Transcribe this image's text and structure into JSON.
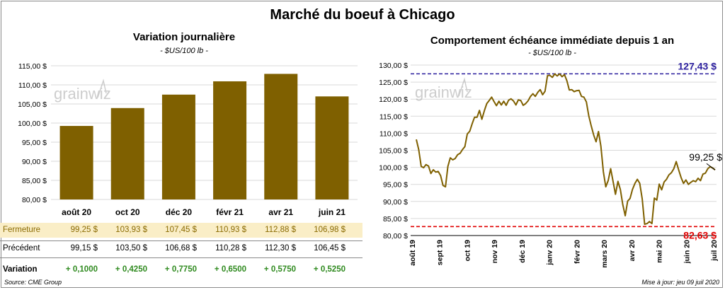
{
  "main_title": "Marché du boeuf à Chicago",
  "footer": {
    "source": "Source: CME Group",
    "updated": "Mise à jour: jeu 09 juil 2020"
  },
  "watermark": "grainwiz",
  "left": {
    "title": "Variation  journalière",
    "unit": "- $US/100 lb -"
  },
  "right": {
    "title": "Comportement  échéance  immédiate  depuis 1 an",
    "unit": "- $US/100 lb -"
  },
  "table": {
    "rows": [
      {
        "label": "Fermeture",
        "values": [
          "99,25  $",
          "103,93  $",
          "107,45  $",
          "110,93  $",
          "112,88  $",
          "106,98  $"
        ]
      },
      {
        "label": "Précédent",
        "values": [
          "99,15  $",
          "103,50  $",
          "106,68  $",
          "110,28  $",
          "112,30  $",
          "106,45  $"
        ]
      },
      {
        "label": "Variation",
        "values": [
          "+ 0,1000",
          "+ 0,4250",
          "+ 0,7750",
          "+ 0,6500",
          "+ 0,5750",
          "+ 0,5250"
        ]
      }
    ]
  },
  "chart_data": [
    {
      "type": "bar",
      "title": "Variation  journalière",
      "categories": [
        "août 20",
        "oct 20",
        "déc 20",
        "févr 21",
        "avr 21",
        "juin 21"
      ],
      "values": [
        99.25,
        103.93,
        107.45,
        110.93,
        112.88,
        106.98
      ],
      "ylim": [
        80,
        115
      ],
      "yticks": [
        80,
        85,
        90,
        95,
        100,
        105,
        110,
        115
      ],
      "ytick_labels": [
        "80,00 $",
        "85,00 $",
        "90,00 $",
        "95,00 $",
        "100,00 $",
        "105,00 $",
        "110,00 $",
        "115,00 $"
      ],
      "grid": true,
      "colors": {
        "bar": "#7f6000"
      }
    },
    {
      "type": "line",
      "title": "Comportement  échéance  immédiate  depuis 1 an",
      "x_labels": [
        "août 19",
        "sept 19",
        "oct 19",
        "nov 19",
        "déc 19",
        "janv 20",
        "févr 20",
        "mars 20",
        "avr 20",
        "mai 20",
        "juin 20",
        "juil 20"
      ],
      "ylim": [
        80,
        130
      ],
      "yticks": [
        80,
        85,
        90,
        95,
        100,
        105,
        110,
        115,
        120,
        125,
        130
      ],
      "ytick_labels": [
        "80,00 $",
        "85,00 $",
        "90,00 $",
        "95,00 $",
        "100,00 $",
        "105,00 $",
        "110,00 $",
        "115,00 $",
        "120,00 $",
        "125,00 $",
        "130,00 $"
      ],
      "grid": true,
      "series": [
        {
          "values": [
            108.2,
            105.2,
            100.3,
            99.9,
            100.8,
            100.4,
            98.2,
            99.3,
            98.6,
            98.8,
            97.6,
            94.7,
            94.3,
            100.3,
            102.8,
            102.2,
            102.6,
            103.7,
            104.1,
            105.2,
            106.1,
            109.8,
            110.6,
            112.8,
            114.7,
            114.7,
            116.7,
            114.1,
            116.6,
            118.7,
            119.6,
            120.6,
            119.3,
            118.1,
            119.4,
            118.3,
            119.4,
            118.2,
            119.7,
            120.1,
            119.5,
            118.3,
            119.8,
            119.6,
            118.2,
            118.7,
            119.5,
            120.8,
            121.6,
            120.8,
            122.0,
            122.8,
            121.3,
            122.3,
            126.9,
            127.0,
            126.4,
            127.4,
            126.8,
            127.4,
            126.6,
            127.2,
            125.4,
            122.7,
            122.8,
            122.2,
            122.5,
            122.6,
            120.8,
            120.6,
            119.2,
            115.1,
            112.2,
            109.5,
            107.5,
            110.5,
            106.2,
            98.7,
            94.3,
            96.1,
            99.6,
            95.9,
            92.1,
            95.9,
            93.5,
            89.1,
            85.8,
            90.1,
            90.9,
            93.5,
            95.3,
            96.5,
            95.3,
            90.7,
            83.3,
            83.5,
            84.1,
            83.5,
            91.0,
            90.4,
            95.1,
            93.4,
            95.7,
            96.5,
            97.8,
            98.4,
            99.6,
            101.7,
            99.3,
            97.0,
            95.3,
            96.3,
            95.0,
            95.6,
            96.1,
            95.8,
            96.8,
            96.1,
            98.0,
            98.3,
            99.6,
            100.2,
            99.8,
            99.25
          ],
          "color": "#7f6000"
        }
      ],
      "reference_lines": [
        {
          "value": 127.43,
          "label": "127,43 $",
          "color": "#2b1e9e"
        },
        {
          "value": 82.63,
          "label": "82,63 $",
          "color": "#e00000"
        }
      ],
      "last_value_label": "99,25 $"
    }
  ]
}
